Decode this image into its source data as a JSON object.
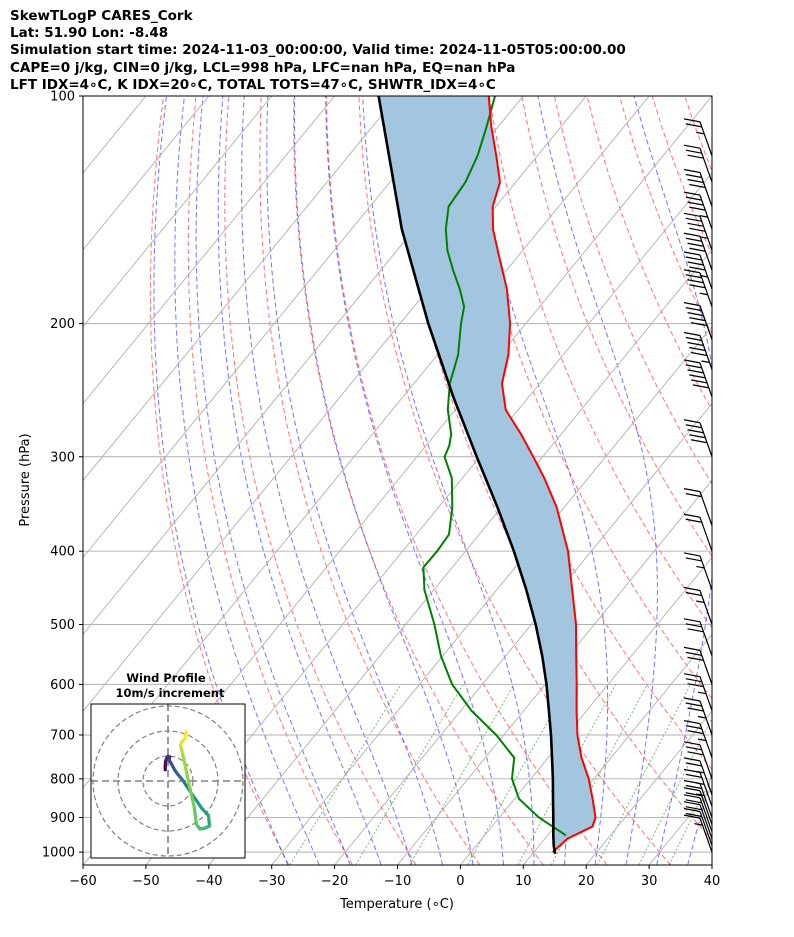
{
  "header": {
    "line1": "SkewTLogP CARES_Cork",
    "line2": "Lat: 51.90   Lon: -8.48",
    "line3": "Simulation start time: 2024-11-03_00:00:00, Valid time: 2024-11-05T05:00:00.00",
    "line4": "CAPE=0 j/kg, CIN=0 j/kg, LCL=998 hPa, LFC=nan hPa, EQ=nan hPa",
    "line5": "LFT IDX=4∘C, K IDX=20∘C, TOTAL TOTS=47∘C, SHWTR_IDX=4∘C"
  },
  "chart_data": {
    "type": "line",
    "subtype": "skew-t log-p",
    "xlabel": "Temperature (∘C)",
    "ylabel": "Pressure (hPa)",
    "xlim": [
      -60,
      40
    ],
    "ylim": [
      1040,
      100
    ],
    "yscale": "log",
    "x_ticks": [
      "−60",
      "−50",
      "−40",
      "−30",
      "−20",
      "−10",
      "0",
      "10",
      "20",
      "30",
      "40"
    ],
    "y_ticks": [
      "100",
      "200",
      "300",
      "400",
      "500",
      "600",
      "700",
      "800",
      "900",
      "1000"
    ],
    "grid": true,
    "series": [
      {
        "role": "temperature",
        "color": "#ff0000",
        "points": [
          [
            1000,
            13.0
          ],
          [
            960,
            13.6
          ],
          [
            925,
            16.0
          ],
          [
            900,
            15.3
          ],
          [
            850,
            12.4
          ],
          [
            800,
            9.2
          ],
          [
            750,
            5.3
          ],
          [
            700,
            1.7
          ],
          [
            650,
            -1.6
          ],
          [
            600,
            -5.0
          ],
          [
            550,
            -8.8
          ],
          [
            500,
            -12.9
          ],
          [
            450,
            -18.0
          ],
          [
            400,
            -23.7
          ],
          [
            350,
            -31.2
          ],
          [
            320,
            -37.0
          ],
          [
            300,
            -41.5
          ],
          [
            280,
            -46.4
          ],
          [
            260,
            -52.0
          ],
          [
            240,
            -56.0
          ],
          [
            220,
            -58.7
          ],
          [
            200,
            -62.5
          ],
          [
            180,
            -67.5
          ],
          [
            160,
            -74.0
          ],
          [
            150,
            -77.5
          ],
          [
            140,
            -80.5
          ],
          [
            130,
            -82.5
          ],
          [
            120,
            -86.5
          ],
          [
            110,
            -91.0
          ],
          [
            100,
            -95.5
          ]
        ]
      },
      {
        "role": "dewpoint",
        "color": "#008000",
        "points": [
          [
            950,
            12.9
          ],
          [
            900,
            6.3
          ],
          [
            850,
            0.7
          ],
          [
            800,
            -3.0
          ],
          [
            750,
            -5.4
          ],
          [
            700,
            -11.2
          ],
          [
            650,
            -18.3
          ],
          [
            600,
            -24.8
          ],
          [
            550,
            -30.3
          ],
          [
            500,
            -35.4
          ],
          [
            450,
            -41.5
          ],
          [
            420,
            -44.6
          ],
          [
            400,
            -44.5
          ],
          [
            380,
            -44.8
          ],
          [
            350,
            -47.8
          ],
          [
            320,
            -51.7
          ],
          [
            300,
            -55.6
          ],
          [
            290,
            -56.3
          ],
          [
            280,
            -57.5
          ],
          [
            260,
            -61.2
          ],
          [
            240,
            -64.3
          ],
          [
            220,
            -66.7
          ],
          [
            200,
            -70.3
          ],
          [
            190,
            -72.0
          ],
          [
            180,
            -75.0
          ],
          [
            170,
            -78.5
          ],
          [
            160,
            -82.0
          ],
          [
            150,
            -85.0
          ],
          [
            140,
            -87.5
          ],
          [
            130,
            -88.0
          ],
          [
            120,
            -89.5
          ],
          [
            110,
            -91.8
          ],
          [
            100,
            -94.5
          ]
        ]
      },
      {
        "role": "parcel profile",
        "color": "#000000",
        "points": [
          [
            1005,
            13.6
          ],
          [
            980,
            12.3
          ],
          [
            950,
            10.9
          ],
          [
            900,
            8.6
          ],
          [
            850,
            6.1
          ],
          [
            800,
            3.5
          ],
          [
            750,
            0.6
          ],
          [
            700,
            -2.5
          ],
          [
            650,
            -6.0
          ],
          [
            600,
            -9.8
          ],
          [
            550,
            -14.2
          ],
          [
            500,
            -19.3
          ],
          [
            450,
            -25.3
          ],
          [
            400,
            -32.3
          ],
          [
            350,
            -40.6
          ],
          [
            300,
            -50.5
          ],
          [
            250,
            -62.0
          ],
          [
            200,
            -75.5
          ],
          [
            150,
            -92.0
          ],
          [
            100,
            -113.0
          ]
        ]
      }
    ],
    "cape_shading_color": "#a2c5e0",
    "wind_barbs": {
      "pressures": [
        1000,
        980,
        960,
        940,
        920,
        900,
        870,
        840,
        800,
        750,
        700,
        650,
        600,
        550,
        500,
        450,
        400,
        370,
        300,
        250,
        230,
        210,
        190,
        180,
        170,
        160,
        150,
        140,
        130,
        120
      ],
      "speeds_kt": [
        15,
        20,
        20,
        20,
        20,
        25,
        25,
        25,
        30,
        35,
        35,
        35,
        30,
        30,
        25,
        25,
        20,
        20,
        50,
        60,
        55,
        50,
        45,
        45,
        40,
        45,
        45,
        40,
        30,
        25
      ]
    },
    "hodograph": {
      "title": "Wind Profile",
      "subtitle": "10m/s increment",
      "rings": [
        1,
        2,
        3
      ],
      "colormap": "viridis",
      "points": [
        [
          -1.1,
          1.5
        ],
        [
          -1.1,
          2.0
        ],
        [
          -1.0,
          2.6
        ],
        [
          -0.6,
          3.0
        ],
        [
          0.0,
          3.3
        ],
        [
          0.7,
          3.2
        ],
        [
          0.5,
          2.8
        ],
        [
          1.5,
          2.2
        ],
        [
          2.8,
          1.4
        ],
        [
          3.9,
          0.9
        ],
        [
          4.9,
          0.5
        ],
        [
          5.9,
          0.1
        ],
        [
          7.3,
          -0.6
        ],
        [
          8.9,
          -1.4
        ],
        [
          10.1,
          -2.0
        ],
        [
          11.6,
          -2.7
        ],
        [
          13.4,
          -3.6
        ],
        [
          16.2,
          -4.6
        ],
        [
          16.6,
          -6.0
        ],
        [
          14.6,
          -6.3
        ],
        [
          12.8,
          -6.4
        ],
        [
          11.4,
          -5.8
        ],
        [
          10.5,
          -3.5
        ],
        [
          8.8,
          -1.0
        ],
        [
          7.2,
          1.5
        ],
        [
          5.8,
          3.7
        ],
        [
          5.0,
          4.8
        ],
        [
          5.5,
          5.2
        ],
        [
          6.8,
          5.7
        ],
        [
          7.3,
          6.6
        ]
      ]
    }
  }
}
